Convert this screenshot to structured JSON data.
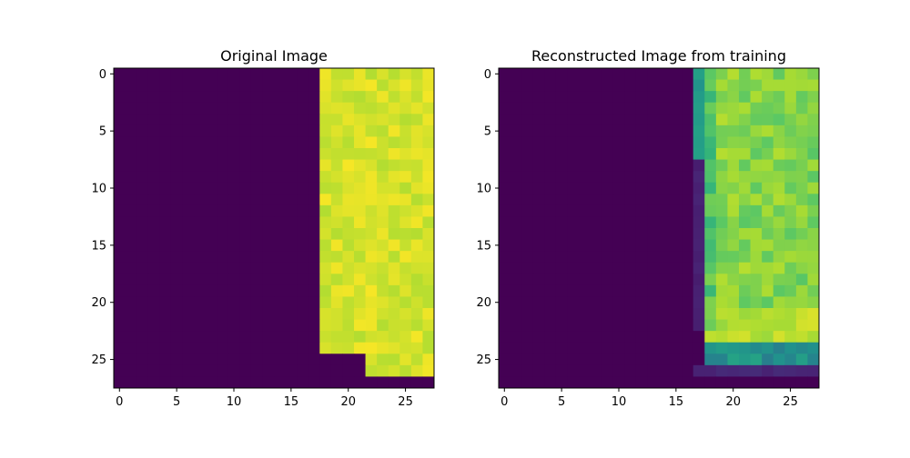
{
  "colors": {
    "background": "#440154",
    "bright": "#e3e419",
    "axes": "#000000"
  },
  "colormap": "viridis",
  "chart_data": [
    {
      "type": "heatmap",
      "title": "Original Image",
      "xlabel": "",
      "ylabel": "",
      "rows": 28,
      "cols": 28,
      "xlim": [
        -0.5,
        27.5
      ],
      "ylim": [
        27.5,
        -0.5
      ],
      "xticks": [
        0,
        5,
        10,
        15,
        20,
        25
      ],
      "yticks": [
        0,
        5,
        10,
        15,
        20,
        25
      ],
      "xtick_labels": [
        "0",
        "5",
        "10",
        "15",
        "20",
        "25"
      ],
      "ytick_labels": [
        "0",
        "5",
        "10",
        "15",
        "20",
        "25"
      ],
      "value_range": [
        0,
        1
      ],
      "description_of_values": {
        "background_value": 0.0,
        "bright_region": [
          {
            "rows": [
              0,
              24
            ],
            "cols": [
              18,
              27
            ],
            "value": 0.94
          },
          {
            "rows": [
              25,
              26
            ],
            "cols": [
              22,
              27
            ],
            "value": 0.94
          }
        ],
        "bright_jitter": 0.05
      }
    },
    {
      "type": "heatmap",
      "title": "Reconstructed Image from training",
      "xlabel": "",
      "ylabel": "",
      "rows": 28,
      "cols": 28,
      "xlim": [
        -0.5,
        27.5
      ],
      "ylim": [
        27.5,
        -0.5
      ],
      "xticks": [
        0,
        5,
        10,
        15,
        20,
        25
      ],
      "yticks": [
        0,
        5,
        10,
        15,
        20,
        25
      ],
      "xtick_labels": [
        "0",
        "5",
        "10",
        "15",
        "20",
        "25"
      ],
      "ytick_labels": [
        "0",
        "5",
        "10",
        "15",
        "20",
        "25"
      ],
      "value_range": [
        0,
        1
      ],
      "description_of_values": {
        "background_value": 0.0,
        "edge_column": {
          "col": 17,
          "rows": [
            0,
            7
          ],
          "value": 0.55
        },
        "edge_column_soft": {
          "col": 17,
          "rows": [
            8,
            22
          ],
          "value": 0.1
        },
        "main_region": {
          "rows": [
            0,
            22
          ],
          "cols": [
            18,
            27
          ],
          "value": 0.82
        },
        "bright_band": {
          "rows": [
            21,
            23
          ],
          "cols": [
            18,
            27
          ],
          "value": 0.9
        },
        "teal_rows": {
          "rows": [
            24,
            25
          ],
          "cols": [
            18,
            27
          ],
          "value": 0.5
        },
        "fade_rows": {
          "rows": [
            26,
            26
          ],
          "cols": [
            17,
            27
          ],
          "value": 0.12
        },
        "jitter": 0.08
      }
    }
  ]
}
